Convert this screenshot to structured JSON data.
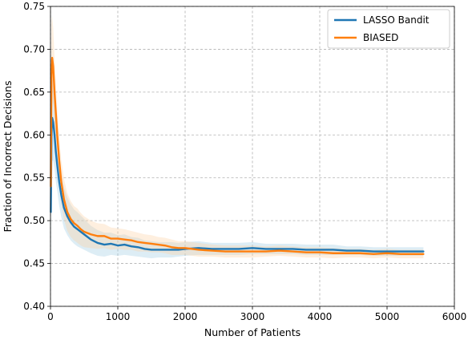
{
  "chart_data": {
    "type": "line",
    "title": "",
    "xlabel": "Number of Patients",
    "ylabel": "Fraction of Incorrect Decisions",
    "xlim": [
      0,
      6000
    ],
    "ylim": [
      0.4,
      0.75
    ],
    "xticks": [
      0,
      1000,
      2000,
      3000,
      4000,
      5000,
      6000
    ],
    "yticks": [
      0.4,
      0.45,
      0.5,
      0.55,
      0.6,
      0.65,
      0.7,
      0.75
    ],
    "xtick_labels": [
      "0",
      "1000",
      "2000",
      "3000",
      "4000",
      "5000",
      "6000"
    ],
    "ytick_labels": [
      "0.40",
      "0.45",
      "0.50",
      "0.55",
      "0.60",
      "0.65",
      "0.70",
      "0.75"
    ],
    "grid": true,
    "legend_position": "top-right",
    "series": [
      {
        "name": "LASSO Bandit",
        "color": "#1f77b4",
        "band_color": "#9ecae1",
        "x": [
          5,
          15,
          25,
          40,
          60,
          80,
          100,
          130,
          160,
          200,
          250,
          300,
          350,
          400,
          450,
          500,
          600,
          700,
          800,
          900,
          1000,
          1100,
          1200,
          1300,
          1400,
          1500,
          1600,
          1700,
          1800,
          1900,
          2000,
          2200,
          2400,
          2600,
          2800,
          3000,
          3200,
          3400,
          3600,
          3800,
          4000,
          4200,
          4400,
          4600,
          4800,
          5000,
          5200,
          5400,
          5540
        ],
        "y": [
          0.51,
          0.6,
          0.62,
          0.615,
          0.6,
          0.58,
          0.565,
          0.545,
          0.53,
          0.515,
          0.505,
          0.498,
          0.493,
          0.49,
          0.487,
          0.484,
          0.478,
          0.474,
          0.472,
          0.473,
          0.471,
          0.472,
          0.47,
          0.469,
          0.467,
          0.466,
          0.466,
          0.466,
          0.466,
          0.466,
          0.467,
          0.468,
          0.467,
          0.467,
          0.467,
          0.468,
          0.467,
          0.467,
          0.467,
          0.466,
          0.466,
          0.466,
          0.465,
          0.465,
          0.464,
          0.464,
          0.464,
          0.464,
          0.464
        ],
        "band": [
          0.08,
          0.06,
          0.05,
          0.045,
          0.04,
          0.035,
          0.03,
          0.028,
          0.026,
          0.024,
          0.022,
          0.021,
          0.02,
          0.02,
          0.019,
          0.018,
          0.016,
          0.015,
          0.014,
          0.013,
          0.012,
          0.012,
          0.011,
          0.011,
          0.01,
          0.01,
          0.009,
          0.009,
          0.009,
          0.008,
          0.008,
          0.008,
          0.007,
          0.007,
          0.007,
          0.007,
          0.006,
          0.006,
          0.006,
          0.006,
          0.006,
          0.006,
          0.005,
          0.005,
          0.005,
          0.005,
          0.005,
          0.005,
          0.005
        ]
      },
      {
        "name": "BIASED",
        "color": "#ff7f0e",
        "band_color": "#fdd0a2",
        "x": [
          5,
          15,
          25,
          40,
          60,
          80,
          100,
          130,
          160,
          200,
          250,
          300,
          350,
          400,
          450,
          500,
          600,
          700,
          800,
          900,
          1000,
          1100,
          1200,
          1300,
          1400,
          1500,
          1600,
          1700,
          1800,
          1900,
          2000,
          2200,
          2400,
          2600,
          2800,
          3000,
          3200,
          3400,
          3600,
          3800,
          4000,
          4200,
          4400,
          4600,
          4800,
          5000,
          5200,
          5400,
          5540
        ],
        "y": [
          0.54,
          0.67,
          0.69,
          0.68,
          0.65,
          0.625,
          0.6,
          0.57,
          0.545,
          0.525,
          0.51,
          0.502,
          0.497,
          0.494,
          0.49,
          0.487,
          0.484,
          0.482,
          0.482,
          0.479,
          0.479,
          0.478,
          0.477,
          0.475,
          0.474,
          0.473,
          0.472,
          0.471,
          0.469,
          0.468,
          0.468,
          0.466,
          0.465,
          0.464,
          0.464,
          0.464,
          0.464,
          0.465,
          0.464,
          0.463,
          0.463,
          0.462,
          0.462,
          0.462,
          0.461,
          0.462,
          0.461,
          0.461,
          0.461
        ],
        "band": [
          0.08,
          0.06,
          0.05,
          0.045,
          0.04,
          0.035,
          0.03,
          0.028,
          0.026,
          0.024,
          0.022,
          0.021,
          0.02,
          0.02,
          0.019,
          0.018,
          0.016,
          0.015,
          0.014,
          0.013,
          0.012,
          0.012,
          0.011,
          0.011,
          0.01,
          0.01,
          0.009,
          0.009,
          0.009,
          0.008,
          0.008,
          0.008,
          0.007,
          0.007,
          0.007,
          0.007,
          0.006,
          0.006,
          0.006,
          0.006,
          0.006,
          0.006,
          0.005,
          0.005,
          0.005,
          0.005,
          0.005,
          0.005,
          0.005
        ]
      }
    ]
  }
}
